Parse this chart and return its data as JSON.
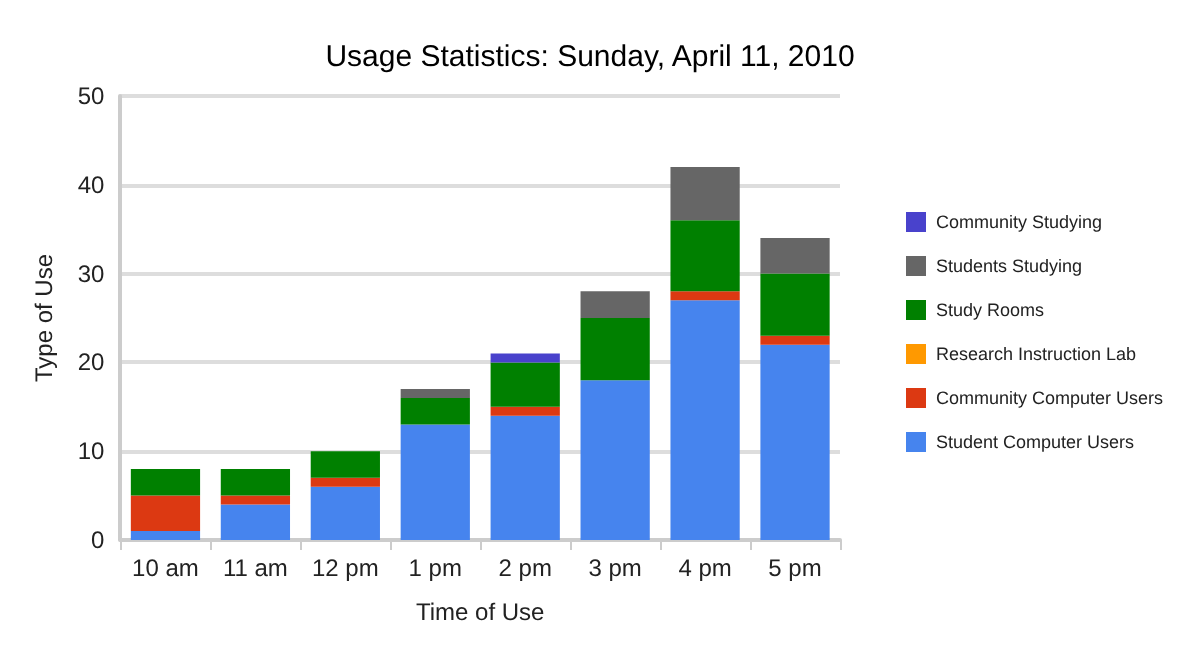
{
  "chart_data": {
    "type": "bar",
    "title": "Usage Statistics: Sunday, April 11, 2010",
    "xlabel": "Time of Use",
    "ylabel": "Type of Use",
    "categories": [
      "10 am",
      "11 am",
      "12 pm",
      "1 pm",
      "2 pm",
      "3 pm",
      "4 pm",
      "5 pm"
    ],
    "stacked": true,
    "ylim": [
      0,
      50
    ],
    "yticks": [
      0,
      10,
      20,
      30,
      40,
      50
    ],
    "grid": "y",
    "legend": "right",
    "series": [
      {
        "name": "Student Computer Users",
        "color": "#4684ee",
        "values": [
          1,
          4,
          6,
          13,
          14,
          18,
          27,
          22
        ]
      },
      {
        "name": "Community Computer Users",
        "color": "#dc3912",
        "values": [
          4,
          1,
          1,
          0,
          1,
          0,
          1,
          1
        ]
      },
      {
        "name": "Research Instruction Lab",
        "color": "#ff9900",
        "values": [
          0,
          0,
          0,
          0,
          0,
          0,
          0,
          0
        ]
      },
      {
        "name": "Study Rooms",
        "color": "#008000",
        "values": [
          3,
          3,
          3,
          3,
          5,
          7,
          8,
          7
        ]
      },
      {
        "name": "Students Studying",
        "color": "#666666",
        "values": [
          0,
          0,
          0,
          1,
          0,
          3,
          6,
          4
        ]
      },
      {
        "name": "Community Studying",
        "color": "#4942cc",
        "values": [
          0,
          0,
          0,
          0,
          1,
          0,
          0,
          0
        ]
      }
    ]
  }
}
